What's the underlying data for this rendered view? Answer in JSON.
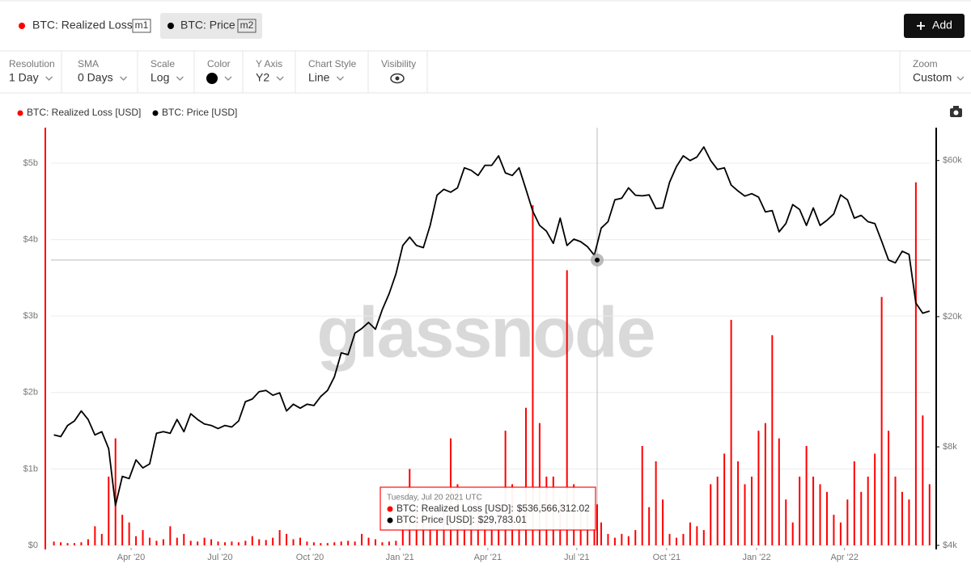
{
  "header": {
    "metrics": [
      {
        "name": "BTC: Realized Loss",
        "tag": "m1"
      },
      {
        "name": "BTC: Price",
        "tag": "m2"
      }
    ],
    "add_button": "Add"
  },
  "toolbar": [
    {
      "label": "Resolution",
      "value": "1 Day"
    },
    {
      "label": "SMA",
      "value": "0 Days"
    },
    {
      "label": "Scale",
      "value": "Log"
    },
    {
      "label": "Color"
    },
    {
      "label": "Y Axis",
      "value": "Y2"
    },
    {
      "label": "Chart Style",
      "value": "Line"
    },
    {
      "label": "Visibility"
    }
  ],
  "zoom": {
    "label": "Zoom",
    "value": "Custom"
  },
  "chart_data": {
    "type": "combo",
    "watermark": "glassnode",
    "x": [
      "2020-01-13",
      "2020-01-20",
      "2020-01-27",
      "2020-02-03",
      "2020-02-10",
      "2020-02-17",
      "2020-02-24",
      "2020-03-02",
      "2020-03-09",
      "2020-03-16",
      "2020-03-23",
      "2020-03-30",
      "2020-04-06",
      "2020-04-13",
      "2020-04-20",
      "2020-04-27",
      "2020-05-04",
      "2020-05-11",
      "2020-05-18",
      "2020-05-25",
      "2020-06-01",
      "2020-06-08",
      "2020-06-15",
      "2020-06-22",
      "2020-06-29",
      "2020-07-06",
      "2020-07-13",
      "2020-07-20",
      "2020-07-27",
      "2020-08-03",
      "2020-08-10",
      "2020-08-17",
      "2020-08-24",
      "2020-08-31",
      "2020-09-07",
      "2020-09-14",
      "2020-09-21",
      "2020-09-28",
      "2020-10-05",
      "2020-10-12",
      "2020-10-19",
      "2020-10-26",
      "2020-11-02",
      "2020-11-09",
      "2020-11-16",
      "2020-11-23",
      "2020-11-30",
      "2020-12-07",
      "2020-12-14",
      "2020-12-21",
      "2020-12-28",
      "2021-01-04",
      "2021-01-11",
      "2021-01-18",
      "2021-01-25",
      "2021-02-01",
      "2021-02-08",
      "2021-02-15",
      "2021-02-22",
      "2021-03-01",
      "2021-03-08",
      "2021-03-15",
      "2021-03-22",
      "2021-03-29",
      "2021-04-05",
      "2021-04-12",
      "2021-04-19",
      "2021-04-26",
      "2021-05-03",
      "2021-05-10",
      "2021-05-17",
      "2021-05-24",
      "2021-05-31",
      "2021-06-07",
      "2021-06-14",
      "2021-06-21",
      "2021-06-28",
      "2021-07-05",
      "2021-07-12",
      "2021-07-19",
      "2021-07-26",
      "2021-08-02",
      "2021-08-09",
      "2021-08-16",
      "2021-08-23",
      "2021-08-30",
      "2021-09-06",
      "2021-09-13",
      "2021-09-20",
      "2021-09-27",
      "2021-10-04",
      "2021-10-11",
      "2021-10-18",
      "2021-10-25",
      "2021-11-01",
      "2021-11-08",
      "2021-11-15",
      "2021-11-22",
      "2021-11-29",
      "2021-12-06",
      "2021-12-13",
      "2021-12-20",
      "2021-12-27",
      "2022-01-03",
      "2022-01-10",
      "2022-01-17",
      "2022-01-24",
      "2022-01-31",
      "2022-02-07",
      "2022-02-14",
      "2022-02-21",
      "2022-02-28",
      "2022-03-07",
      "2022-03-14",
      "2022-03-21",
      "2022-03-28",
      "2022-04-04",
      "2022-04-11",
      "2022-04-18",
      "2022-04-25",
      "2022-05-02",
      "2022-05-09",
      "2022-05-16",
      "2022-05-23",
      "2022-05-30",
      "2022-06-06",
      "2022-06-13",
      "2022-06-20",
      "2022-06-27"
    ],
    "series": [
      {
        "name": "BTC: Realized Loss [USD]",
        "type": "bar",
        "color": "#ff0000",
        "axis": "y",
        "values": [
          50000000.0,
          40000000.0,
          30000000.0,
          30000000.0,
          40000000.0,
          80000000.0,
          250000000.0,
          150000000.0,
          900000000.0,
          1400000000.0,
          400000000.0,
          300000000.0,
          120000000.0,
          200000000.0,
          100000000.0,
          60000000.0,
          80000000.0,
          250000000.0,
          100000000.0,
          150000000.0,
          60000000.0,
          50000000.0,
          100000000.0,
          80000000.0,
          50000000.0,
          40000000.0,
          50000000.0,
          40000000.0,
          60000000.0,
          120000000.0,
          80000000.0,
          70000000.0,
          100000000.0,
          200000000.0,
          150000000.0,
          80000000.0,
          100000000.0,
          50000000.0,
          40000000.0,
          30000000.0,
          30000000.0,
          40000000.0,
          50000000.0,
          60000000.0,
          50000000.0,
          150000000.0,
          100000000.0,
          80000000.0,
          40000000.0,
          50000000.0,
          60000000.0,
          400000000.0,
          1000000000.0,
          500000000.0,
          600000000.0,
          300000000.0,
          200000000.0,
          500000000.0,
          1400000000.0,
          800000000.0,
          300000000.0,
          600000000.0,
          700000000.0,
          400000000.0,
          300000000.0,
          500000000.0,
          1500000000.0,
          800000000.0,
          500000000.0,
          1800000000.0,
          4450000000.0,
          1600000000.0,
          900000000.0,
          900000000.0,
          600000000.0,
          3600000000.0,
          800000000.0,
          500000000.0,
          500000000.0,
          540000000.0,
          300000000.0,
          150000000.0,
          100000000.0,
          150000000.0,
          120000000.0,
          200000000.0,
          1300000000.0,
          500000000.0,
          1100000000.0,
          600000000.0,
          150000000.0,
          100000000.0,
          150000000.0,
          300000000.0,
          250000000.0,
          200000000.0,
          800000000.0,
          900000000.0,
          1200000000.0,
          2950000000.0,
          1100000000.0,
          800000000.0,
          900000000.0,
          1500000000.0,
          1600000000.0,
          2750000000.0,
          1400000000.0,
          600000000.0,
          300000000.0,
          900000000.0,
          1300000000.0,
          900000000.0,
          800000000.0,
          700000000.0,
          400000000.0,
          300000000.0,
          600000000.0,
          1100000000.0,
          700000000.0,
          900000000.0,
          1200000000.0,
          3250000000.0,
          1500000000.0,
          900000000.0,
          700000000.0,
          600000000.0,
          4750000000.0,
          1700000000.0,
          800000000.0
        ]
      },
      {
        "name": "BTC: Price [USD]",
        "type": "line",
        "color": "#000000",
        "axis": "y2",
        "values": [
          8700,
          8600,
          9300,
          9600,
          10300,
          9700,
          8700,
          8900,
          7900,
          5300,
          6500,
          6400,
          7300,
          6900,
          7100,
          8800,
          8900,
          8800,
          9700,
          8900,
          10100,
          9700,
          9400,
          9300,
          9100,
          9300,
          9200,
          9600,
          11000,
          11200,
          11800,
          11900,
          11500,
          11700,
          10300,
          10800,
          10500,
          10800,
          10700,
          11400,
          11900,
          13100,
          15500,
          15300,
          17800,
          18400,
          19200,
          18300,
          21000,
          23500,
          27000,
          33000,
          35000,
          33000,
          32500,
          38000,
          47000,
          49000,
          48000,
          49500,
          57000,
          56000,
          54000,
          58000,
          58000,
          62000,
          55000,
          54000,
          57000,
          49000,
          42000,
          38000,
          36500,
          33500,
          40000,
          33000,
          34500,
          33900,
          32700,
          30800,
          37300,
          39000,
          45500,
          46000,
          49500,
          47000,
          46800,
          47100,
          42800,
          43000,
          51500,
          57500,
          62000,
          60000,
          61500,
          66000,
          60000,
          56300,
          57000,
          50500,
          48400,
          46700,
          47500,
          46400,
          41800,
          42200,
          36300,
          38500,
          44000,
          42500,
          38000,
          43000,
          38000,
          39400,
          41200,
          47100,
          45500,
          40000,
          40800,
          39000,
          38500,
          34000,
          29800,
          29200,
          31700,
          31000,
          22000,
          20500,
          20800
        ]
      }
    ],
    "xlim": [
      "2020-01-10",
      "2022-06-28"
    ],
    "xticks": [
      {
        "value": "2020-04-01",
        "label": "Apr '20"
      },
      {
        "value": "2020-07-01",
        "label": "Jul '20"
      },
      {
        "value": "2020-10-01",
        "label": "Oct '20"
      },
      {
        "value": "2021-01-01",
        "label": "Jan '21"
      },
      {
        "value": "2021-04-01",
        "label": "Apr '21"
      },
      {
        "value": "2021-07-01",
        "label": "Jul '21"
      },
      {
        "value": "2021-10-01",
        "label": "Oct '21"
      },
      {
        "value": "2022-01-01",
        "label": "Jan '22"
      },
      {
        "value": "2022-04-01",
        "label": "Apr '22"
      }
    ],
    "ylim": [
      0,
      5450000000.0
    ],
    "yticks": [
      {
        "value": 0,
        "label": "$0"
      },
      {
        "value": 1000000000.0,
        "label": "$1b"
      },
      {
        "value": 2000000000.0,
        "label": "$2b"
      },
      {
        "value": 3000000000.0,
        "label": "$3b"
      },
      {
        "value": 4000000000.0,
        "label": "$4b"
      },
      {
        "value": 5000000000.0,
        "label": "$5b"
      }
    ],
    "y2lim": [
      4000,
      75000
    ],
    "y2scale": "log",
    "y2ticks": [
      {
        "value": 4000,
        "label": "$4k"
      },
      {
        "value": 8000,
        "label": "$8k"
      },
      {
        "value": 20000,
        "label": "$20k"
      },
      {
        "value": 60000,
        "label": "$60k"
      }
    ],
    "grid": true,
    "tooltip": {
      "title": "Tuesday, Jul 20 2021 UTC",
      "items": [
        {
          "label": "BTC: Realized Loss [USD]:",
          "value": 536566312.02,
          "value_label": "$536,566,312.02"
        },
        {
          "label": "BTC: Price [USD]:",
          "value": 29783.01,
          "value_label": "$29,783.01"
        }
      ]
    }
  }
}
